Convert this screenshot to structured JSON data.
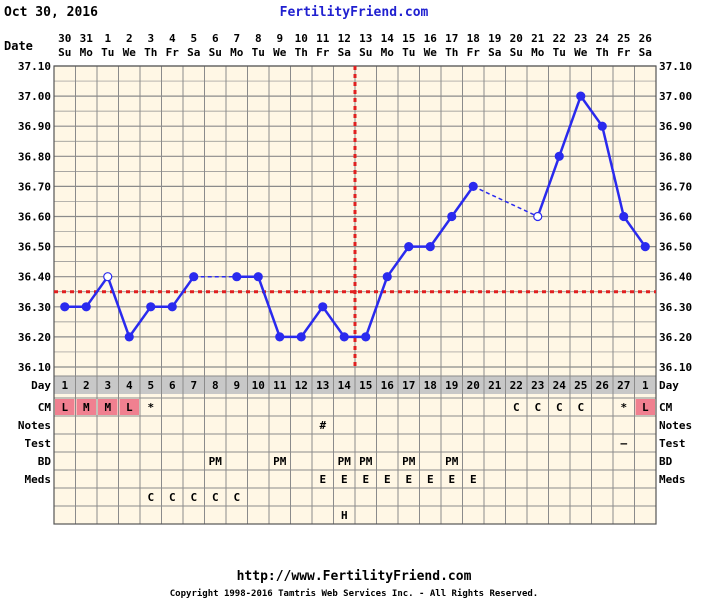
{
  "header": {
    "date": "Oct 30, 2016",
    "site": "FertilityFriend.com"
  },
  "footer": {
    "url": "http://www.FertilityFriend.com",
    "copyright": "Copyright 1998-2016 Tamtris Web Services Inc. - All Rights Reserved."
  },
  "row_labels": {
    "date": "Date",
    "day": "Day",
    "cm": "CM",
    "notes": "Notes",
    "test": "Test",
    "bd": "BD",
    "meds": "Meds"
  },
  "colors": {
    "background": "#FFF7E5",
    "grid": "#8B8B8B",
    "line": "#2A2AEE",
    "coverline": "#E02020",
    "day_row": "#C8C8C8",
    "cm_highlight": "#F08090",
    "site": "#2020D0"
  },
  "chart_data": {
    "type": "line",
    "title": "",
    "ylabel": "",
    "xlabel": "Day",
    "ylim": [
      36.1,
      37.1
    ],
    "yticks": [
      "36.10",
      "36.20",
      "36.30",
      "36.40",
      "36.50",
      "36.60",
      "36.70",
      "36.80",
      "36.90",
      "37.00",
      "37.10"
    ],
    "dates": [
      "30",
      "31",
      "1",
      "2",
      "3",
      "4",
      "5",
      "6",
      "7",
      "8",
      "9",
      "10",
      "11",
      "12",
      "13",
      "14",
      "15",
      "16",
      "17",
      "18",
      "19",
      "20",
      "21",
      "22",
      "23",
      "24",
      "25",
      "26"
    ],
    "weekdays": [
      "Su",
      "Mo",
      "Tu",
      "We",
      "Th",
      "Fr",
      "Sa",
      "Su",
      "Mo",
      "Tu",
      "We",
      "Th",
      "Fr",
      "Sa",
      "Su",
      "Mo",
      "Tu",
      "We",
      "Th",
      "Fr",
      "Sa",
      "Su",
      "Mo",
      "Tu",
      "We",
      "Th",
      "Fr",
      "Sa"
    ],
    "days": [
      "1",
      "2",
      "3",
      "4",
      "5",
      "6",
      "7",
      "8",
      "9",
      "10",
      "11",
      "12",
      "13",
      "14",
      "15",
      "16",
      "17",
      "18",
      "19",
      "20",
      "21",
      "22",
      "23",
      "24",
      "25",
      "26",
      "27",
      "1"
    ],
    "temps": [
      36.3,
      36.3,
      36.4,
      36.2,
      36.3,
      36.3,
      36.4,
      null,
      36.4,
      36.4,
      36.2,
      36.2,
      36.3,
      36.2,
      36.2,
      36.4,
      36.5,
      36.5,
      36.6,
      36.7,
      null,
      null,
      36.6,
      36.8,
      37.0,
      36.9,
      36.6,
      36.5
    ],
    "open_points": [
      2,
      22
    ],
    "coverline": 36.35,
    "ovulation_day_index": 14,
    "grid": true,
    "rows": {
      "cm": [
        {
          "i": 0,
          "v": "L",
          "hl": true
        },
        {
          "i": 1,
          "v": "M",
          "hl": true
        },
        {
          "i": 2,
          "v": "M",
          "hl": true
        },
        {
          "i": 3,
          "v": "L",
          "hl": true
        },
        {
          "i": 4,
          "v": "*",
          "hl": false
        },
        {
          "i": 21,
          "v": "C",
          "hl": false
        },
        {
          "i": 22,
          "v": "C",
          "hl": false
        },
        {
          "i": 23,
          "v": "C",
          "hl": false
        },
        {
          "i": 24,
          "v": "C",
          "hl": false
        },
        {
          "i": 26,
          "v": "*",
          "hl": false
        },
        {
          "i": 27,
          "v": "L",
          "hl": true
        }
      ],
      "notes": [
        {
          "i": 12,
          "v": "#"
        }
      ],
      "test": [
        {
          "i": 26,
          "v": "–"
        }
      ],
      "bd": [
        {
          "i": 7,
          "v": "PM"
        },
        {
          "i": 10,
          "v": "PM"
        },
        {
          "i": 13,
          "v": "PM"
        },
        {
          "i": 14,
          "v": "PM"
        },
        {
          "i": 16,
          "v": "PM"
        },
        {
          "i": 18,
          "v": "PM"
        }
      ],
      "meds": [
        {
          "i": 12,
          "v": "E"
        },
        {
          "i": 13,
          "v": "E"
        },
        {
          "i": 14,
          "v": "E"
        },
        {
          "i": 15,
          "v": "E"
        },
        {
          "i": 16,
          "v": "E"
        },
        {
          "i": 17,
          "v": "E"
        },
        {
          "i": 18,
          "v": "E"
        },
        {
          "i": 19,
          "v": "E"
        }
      ],
      "extra1": [
        {
          "i": 4,
          "v": "C"
        },
        {
          "i": 5,
          "v": "C"
        },
        {
          "i": 6,
          "v": "C"
        },
        {
          "i": 7,
          "v": "C"
        },
        {
          "i": 8,
          "v": "C"
        }
      ],
      "extra2": [
        {
          "i": 13,
          "v": "H"
        }
      ]
    }
  }
}
